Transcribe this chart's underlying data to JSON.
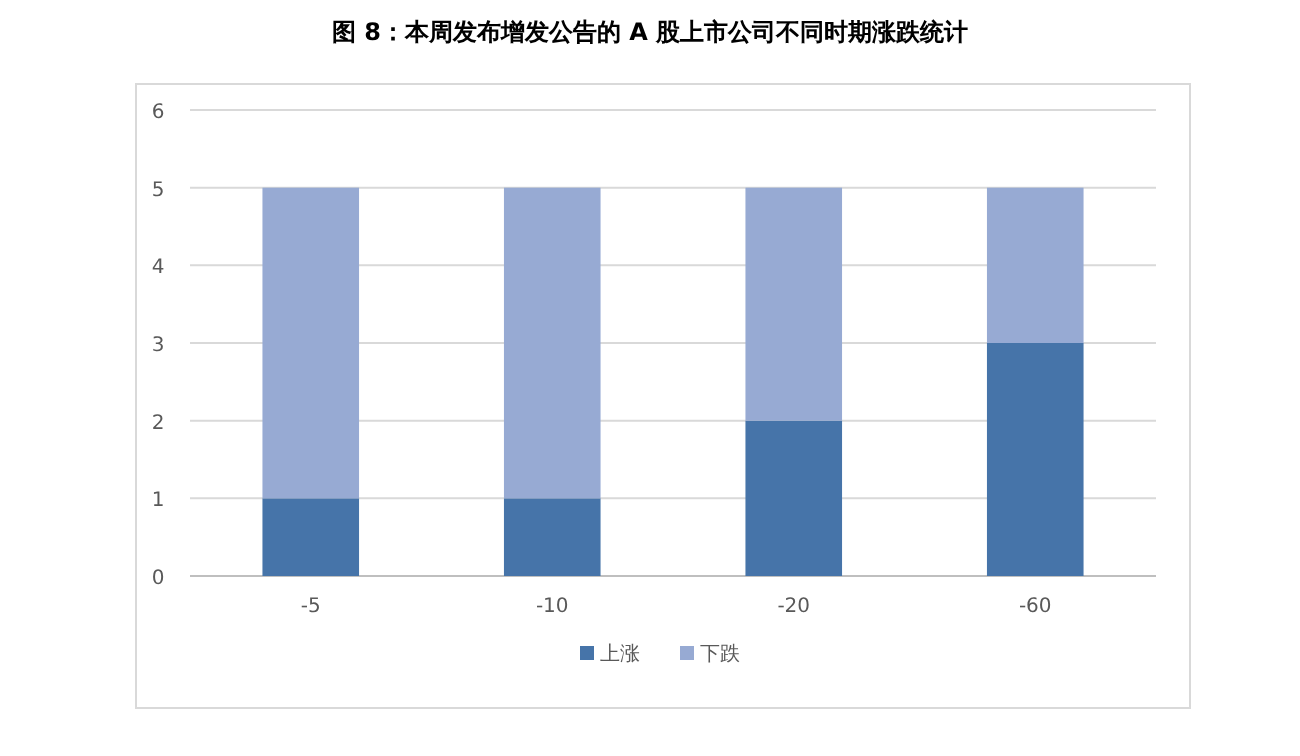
{
  "chart_data": {
    "type": "bar",
    "title": "图 8：本周发布增发公告的 A 股上市公司不同时期涨跌统计",
    "categories": [
      "-5",
      "-10",
      "-20",
      "-60"
    ],
    "series": [
      {
        "name": "上涨",
        "color": "#4674a9",
        "values": [
          1,
          1,
          2,
          3
        ]
      },
      {
        "name": "下跌",
        "color": "#97aad3",
        "values": [
          4,
          4,
          3,
          2
        ]
      }
    ],
    "stacked": true,
    "ylim": [
      0,
      6
    ],
    "yticks": [
      0,
      1,
      2,
      3,
      4,
      5,
      6
    ],
    "grid": "y",
    "legend": "bottom"
  }
}
